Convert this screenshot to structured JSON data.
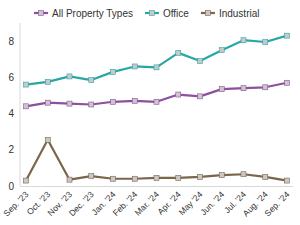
{
  "chart_data": {
    "type": "line",
    "categories": [
      "Sep. '23",
      "Oct. '23",
      "Nov. '23",
      "Dec. '23",
      "Jan. '24",
      "Feb. '24",
      "Mar. '24",
      "Apr. '24",
      "May '24",
      "Jun. '24",
      "Jul. '24",
      "Aug. '24",
      "Sep. '24"
    ],
    "series": [
      {
        "name": "All Property Types",
        "color": "#8e4fa0",
        "marker": "square",
        "values": [
          4.4,
          4.6,
          4.55,
          4.5,
          4.65,
          4.7,
          4.65,
          5.05,
          4.95,
          5.35,
          5.4,
          5.45,
          5.7
        ]
      },
      {
        "name": "Office",
        "color": "#2aa7a5",
        "marker": "square",
        "values": [
          5.6,
          5.75,
          6.05,
          5.85,
          6.3,
          6.6,
          6.55,
          7.35,
          6.9,
          7.5,
          8.05,
          7.95,
          8.3
        ]
      },
      {
        "name": "Industrial",
        "color": "#7a6649",
        "marker": "square",
        "values": [
          0.3,
          2.55,
          0.35,
          0.55,
          0.4,
          0.4,
          0.45,
          0.45,
          0.5,
          0.6,
          0.65,
          0.5,
          0.3
        ]
      }
    ],
    "ylim": [
      0,
      9
    ],
    "yticks": [
      0,
      2,
      4,
      6,
      8
    ],
    "grid": false,
    "legend": "top"
  }
}
